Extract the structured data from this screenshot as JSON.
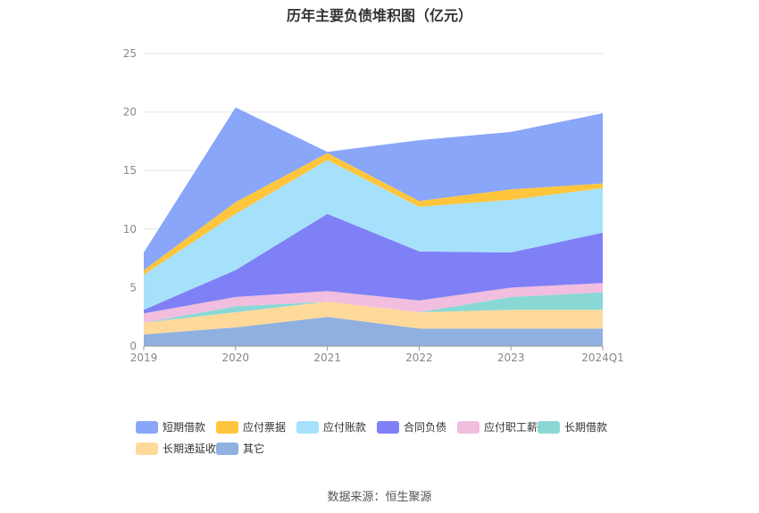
{
  "chart_data": {
    "type": "area",
    "stacked": true,
    "title": "历年主要负债堆积图（亿元）",
    "categories": [
      "2019",
      "2020",
      "2021",
      "2022",
      "2023",
      "2024Q1"
    ],
    "ylim": [
      0,
      25
    ],
    "yticks": [
      0,
      5,
      10,
      15,
      20,
      25
    ],
    "grid": true,
    "legend_position": "bottom",
    "series": [
      {
        "name": "其它",
        "color": "#8fb0e0",
        "values": [
          1.0,
          1.6,
          2.5,
          1.5,
          1.5,
          1.5
        ]
      },
      {
        "name": "长期递延收益",
        "color": "#ffd99a",
        "values": [
          1.0,
          1.3,
          1.3,
          1.4,
          1.6,
          1.6
        ]
      },
      {
        "name": "长期借款",
        "color": "#8ad8d6",
        "values": [
          0.0,
          0.5,
          0.0,
          0.0,
          1.1,
          1.5
        ]
      },
      {
        "name": "应付职工薪酬",
        "color": "#f1bedf",
        "values": [
          0.8,
          0.8,
          0.9,
          1.0,
          0.8,
          0.8
        ]
      },
      {
        "name": "合同负债",
        "color": "#8080f6",
        "values": [
          0.3,
          2.3,
          6.6,
          4.2,
          3.0,
          4.3
        ]
      },
      {
        "name": "应付账款",
        "color": "#a6e1fc",
        "values": [
          3.0,
          4.8,
          4.6,
          3.8,
          4.5,
          3.8
        ]
      },
      {
        "name": "应付票据",
        "color": "#ffc53d",
        "values": [
          0.4,
          1.0,
          0.6,
          0.5,
          0.9,
          0.4
        ]
      },
      {
        "name": "短期借款",
        "color": "#89a6f9",
        "values": [
          1.5,
          8.1,
          0.1,
          5.2,
          4.9,
          6.0
        ]
      }
    ]
  },
  "source_note": "数据来源：恒生聚源"
}
